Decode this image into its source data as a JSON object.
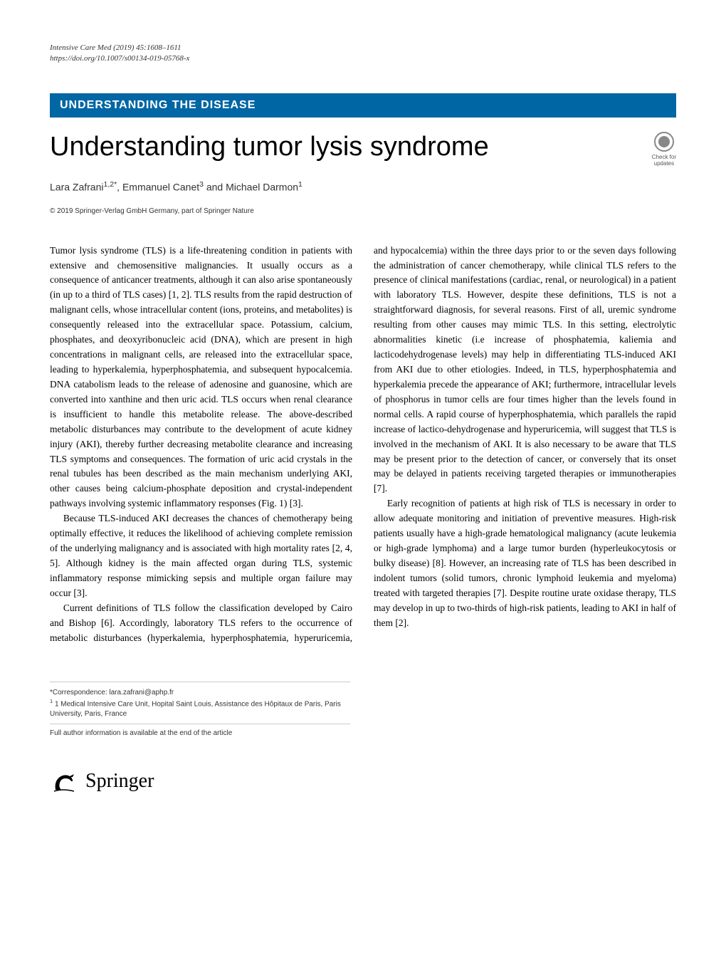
{
  "meta": {
    "journal_line": "Intensive Care Med (2019) 45:1608–1611",
    "doi_line": "https://doi.org/10.1007/s00134-019-05768-x"
  },
  "section_banner": "UNDERSTANDING THE DISEASE",
  "title": "Understanding tumor lysis syndrome",
  "check_updates": {
    "line1": "Check for",
    "line2": "updates"
  },
  "authors_html": "Lara Zafrani<sup>1,2*</sup>, Emmanuel Canet<sup>3</sup> and Michael Darmon<sup>1</sup>",
  "copyright": "© 2019 Springer-Verlag GmbH Germany, part of Springer Nature",
  "paragraphs": {
    "p1": "Tumor lysis syndrome (TLS) is a life-threatening condition in patients with extensive and chemosensitive malignancies. It usually occurs as a consequence of anticancer treatments, although it can also arise spontaneously (in up to a third of TLS cases) [1, 2]. TLS results from the rapid destruction of malignant cells, whose intracellular content (ions, proteins, and metabolites) is consequently released into the extracellular space. Potassium, calcium, phosphates, and deoxyribonucleic acid (DNA), which are present in high concentrations in malignant cells, are released into the extracellular space, leading to hyperkalemia, hyperphosphatemia, and subsequent hypocalcemia. DNA catabolism leads to the release of adenosine and guanosine, which are converted into xanthine and then uric acid. TLS occurs when renal clearance is insufficient to handle this metabolite release. The above-described metabolic disturbances may contribute to the development of acute kidney injury (AKI), thereby further decreasing metabolite clearance and increasing TLS symptoms and consequences. The formation of uric acid crystals in the renal tubules has been described as the main mechanism underlying AKI, other causes being calcium-phosphate deposition and crystal-independent pathways involving systemic inflammatory responses (Fig. 1) [3].",
    "p2": "Because TLS-induced AKI decreases the chances of chemotherapy being optimally effective, it reduces the likelihood of achieving complete remission of the underlying malignancy and is associated with high mortality rates [2, 4, 5]. Although kidney is the main affected organ during TLS, systemic inflammatory response mimicking sepsis and multiple organ failure may occur [3].",
    "p3": "Current definitions of TLS follow the classification developed by Cairo and Bishop [6]. Accordingly, laboratory TLS refers to the occurrence of metabolic disturbances (hyperkalemia, hyperphosphatemia, hyperuricemia, and hypocalcemia) within the three days prior to or the seven days following the administration of cancer chemotherapy, while clinical TLS refers to the presence of clinical manifestations (cardiac, renal, or neurological) in a patient with laboratory TLS. However, despite these definitions, TLS is not a straightforward diagnosis, for several reasons. First of all, uremic syndrome resulting from other causes may mimic TLS. In this setting, electrolytic abnormalities kinetic (i.e increase of phosphatemia, kaliemia and lacticodehydrogenase levels) may help in differentiating TLS-induced AKI from AKI due to other etiologies. Indeed, in TLS, hyperphosphatemia and hyperkalemia precede the appearance of AKI; furthermore, intracellular levels of phosphorus in tumor cells are four times higher than the levels found in normal cells. A rapid course of hyperphosphatemia, which parallels the rapid increase of lactico-dehydrogenase and hyperuricemia, will suggest that TLS is involved in the mechanism of AKI. It is also necessary to be aware that TLS may be present prior to the detection of cancer, or conversely that its onset may be delayed in patients receiving targeted therapies or immunotherapies [7].",
    "p4": "Early recognition of patients at high risk of TLS is necessary in order to allow adequate monitoring and initiation of preventive measures. High-risk patients usually have a high-grade hematological malignancy (acute leukemia or high-grade lymphoma) and a large tumor burden (hyperleukocytosis or bulky disease) [8]. However, an increasing rate of TLS has been described in indolent tumors (solid tumors, chronic lymphoid leukemia and myeloma) treated with targeted therapies [7]. Despite routine urate oxidase therapy, TLS may develop in up to two-thirds of high-risk patients, leading to AKI in half of them [2]."
  },
  "footer": {
    "correspondence": "*Correspondence: lara.zafrani@aphp.fr",
    "affiliation": "1 Medical Intensive Care Unit, Hopital Saint Louis, Assistance des Hôpitaux de Paris, Paris University, Paris, France",
    "full_author_info": "Full author information is available at the end of the article"
  },
  "springer": {
    "text": "Springer"
  },
  "colors": {
    "banner_bg": "#0066a4",
    "banner_text": "#ffffff",
    "ref_link": "#0066a4",
    "body_text": "#000000",
    "meta_text": "#333333"
  }
}
